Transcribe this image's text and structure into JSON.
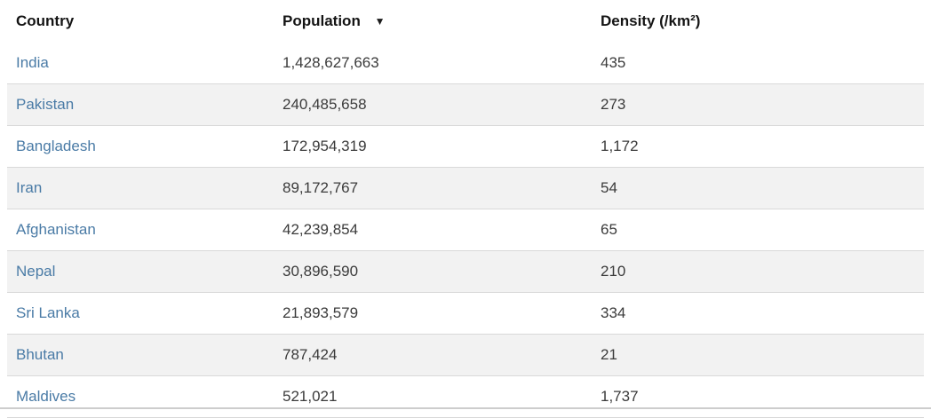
{
  "table": {
    "columns": [
      {
        "label": "Country"
      },
      {
        "label": "Population",
        "sort_indicator": "▼",
        "sort_state": "descending"
      },
      {
        "label": "Density (/km²)"
      }
    ],
    "rows": [
      {
        "country": "India",
        "population": "1,428,627,663",
        "density": "435"
      },
      {
        "country": "Pakistan",
        "population": "240,485,658",
        "density": "273"
      },
      {
        "country": "Bangladesh",
        "population": "172,954,319",
        "density": "1,172"
      },
      {
        "country": "Iran",
        "population": "89,172,767",
        "density": "54"
      },
      {
        "country": "Afghanistan",
        "population": "42,239,854",
        "density": "65"
      },
      {
        "country": "Nepal",
        "population": "30,896,590",
        "density": "210"
      },
      {
        "country": "Sri Lanka",
        "population": "21,893,579",
        "density": "334"
      },
      {
        "country": "Bhutan",
        "population": "787,424",
        "density": "21"
      },
      {
        "country": "Maldives",
        "population": "521,021",
        "density": "1,737"
      }
    ],
    "colors": {
      "link_blue": "#4a7ba6",
      "stripe_gray": "#f2f2f2",
      "row_border": "#d9d9d9",
      "header_text": "#141414",
      "body_text": "#3b3b3b"
    }
  }
}
